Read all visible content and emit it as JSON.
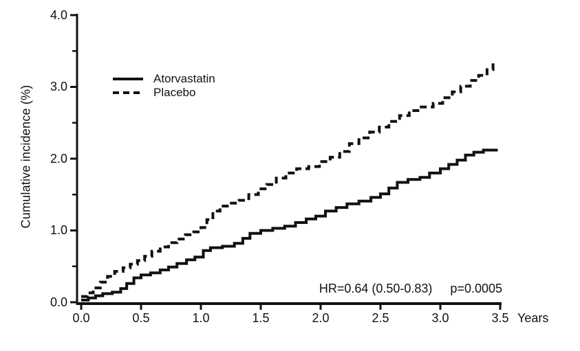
{
  "figure": {
    "background": "#ffffff",
    "ink_color": "#111111"
  },
  "chart_data": {
    "type": "line",
    "subtype": "kaplan-meier-cumulative-incidence",
    "title": "",
    "xlabel": "Years",
    "ylabel": "Cumulative incidence (%)",
    "xlim": [
      0,
      3.5
    ],
    "ylim": [
      0,
      4.0
    ],
    "grid": false,
    "legend_position": "upper-left-inside",
    "interpolation": "step-after",
    "x_tick_labels": [
      "0.0",
      "0.5",
      "1.0",
      "1.5",
      "2.0",
      "2.5",
      "3.0",
      "3.5"
    ],
    "y_tick_labels": [
      "0.0",
      "1.0",
      "2.0",
      "3.0",
      "4.0"
    ],
    "y_minor_ticks": [
      0.5,
      1.5,
      2.5,
      3.5
    ],
    "annotation": {
      "hr": "HR=0.64 (0.50-0.83)",
      "p": "p=0.0005"
    },
    "series": [
      {
        "name": "Atorvastatin",
        "style": "solid",
        "color": "#111111",
        "points": [
          [
            0.0,
            0.03
          ],
          [
            0.06,
            0.06
          ],
          [
            0.12,
            0.09
          ],
          [
            0.18,
            0.12
          ],
          [
            0.26,
            0.14
          ],
          [
            0.33,
            0.19
          ],
          [
            0.38,
            0.26
          ],
          [
            0.44,
            0.34
          ],
          [
            0.5,
            0.38
          ],
          [
            0.58,
            0.41
          ],
          [
            0.66,
            0.45
          ],
          [
            0.73,
            0.49
          ],
          [
            0.8,
            0.54
          ],
          [
            0.88,
            0.59
          ],
          [
            0.95,
            0.63
          ],
          [
            1.02,
            0.72
          ],
          [
            1.08,
            0.76
          ],
          [
            1.18,
            0.78
          ],
          [
            1.28,
            0.82
          ],
          [
            1.35,
            0.89
          ],
          [
            1.41,
            0.96
          ],
          [
            1.5,
            1.0
          ],
          [
            1.6,
            1.03
          ],
          [
            1.7,
            1.06
          ],
          [
            1.79,
            1.11
          ],
          [
            1.88,
            1.16
          ],
          [
            1.96,
            1.2
          ],
          [
            2.04,
            1.27
          ],
          [
            2.13,
            1.32
          ],
          [
            2.22,
            1.37
          ],
          [
            2.32,
            1.41
          ],
          [
            2.42,
            1.46
          ],
          [
            2.5,
            1.51
          ],
          [
            2.57,
            1.59
          ],
          [
            2.64,
            1.67
          ],
          [
            2.73,
            1.71
          ],
          [
            2.83,
            1.74
          ],
          [
            2.91,
            1.8
          ],
          [
            3.0,
            1.86
          ],
          [
            3.07,
            1.92
          ],
          [
            3.14,
            1.98
          ],
          [
            3.21,
            2.05
          ],
          [
            3.28,
            2.09
          ],
          [
            3.36,
            2.12
          ],
          [
            3.48,
            2.12
          ]
        ]
      },
      {
        "name": "Placebo",
        "style": "dashed",
        "color": "#111111",
        "points": [
          [
            0.0,
            0.08
          ],
          [
            0.05,
            0.13
          ],
          [
            0.1,
            0.2
          ],
          [
            0.16,
            0.28
          ],
          [
            0.22,
            0.36
          ],
          [
            0.28,
            0.43
          ],
          [
            0.35,
            0.48
          ],
          [
            0.41,
            0.53
          ],
          [
            0.47,
            0.58
          ],
          [
            0.53,
            0.64
          ],
          [
            0.59,
            0.71
          ],
          [
            0.66,
            0.77
          ],
          [
            0.73,
            0.83
          ],
          [
            0.8,
            0.88
          ],
          [
            0.87,
            0.94
          ],
          [
            0.94,
            0.98
          ],
          [
            1.0,
            1.04
          ],
          [
            1.05,
            1.15
          ],
          [
            1.1,
            1.27
          ],
          [
            1.16,
            1.34
          ],
          [
            1.24,
            1.38
          ],
          [
            1.32,
            1.42
          ],
          [
            1.4,
            1.5
          ],
          [
            1.48,
            1.58
          ],
          [
            1.55,
            1.64
          ],
          [
            1.63,
            1.73
          ],
          [
            1.71,
            1.8
          ],
          [
            1.8,
            1.86
          ],
          [
            1.9,
            1.89
          ],
          [
            1.99,
            1.96
          ],
          [
            2.08,
            2.02
          ],
          [
            2.16,
            2.1
          ],
          [
            2.24,
            2.21
          ],
          [
            2.32,
            2.29
          ],
          [
            2.41,
            2.37
          ],
          [
            2.49,
            2.44
          ],
          [
            2.57,
            2.52
          ],
          [
            2.66,
            2.6
          ],
          [
            2.74,
            2.67
          ],
          [
            2.84,
            2.72
          ],
          [
            2.94,
            2.77
          ],
          [
            3.02,
            2.85
          ],
          [
            3.1,
            2.93
          ],
          [
            3.17,
            3.01
          ],
          [
            3.25,
            3.09
          ],
          [
            3.32,
            3.16
          ],
          [
            3.39,
            3.24
          ],
          [
            3.44,
            3.35
          ]
        ]
      }
    ]
  }
}
